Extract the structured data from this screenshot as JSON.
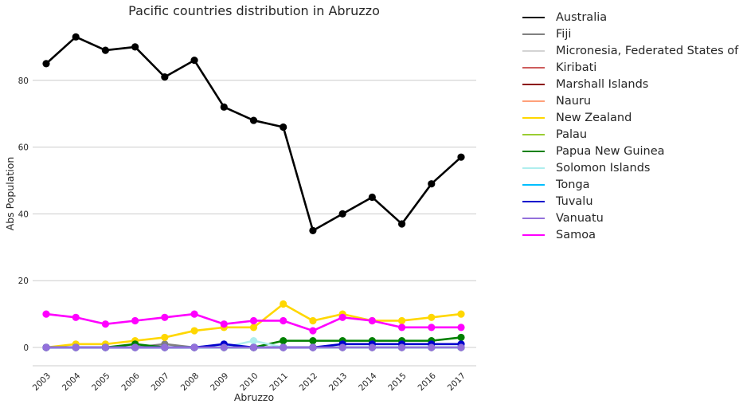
{
  "chart_data": {
    "type": "line",
    "title": "Pacific countries distribution in Abruzzo",
    "xlabel": "Abruzzo",
    "ylabel": "Abs Population",
    "x": [
      "2003",
      "2004",
      "2005",
      "2006",
      "2007",
      "2008",
      "2009",
      "2010",
      "2011",
      "2012",
      "2013",
      "2014",
      "2015",
      "2016",
      "2017"
    ],
    "ylim": [
      -5,
      100
    ],
    "yticks": [
      0,
      20,
      40,
      60,
      80
    ],
    "grid": "horizontal",
    "legend_position": "outside-right",
    "series": [
      {
        "name": "Australia",
        "color": "#000000",
        "values": [
          85,
          93,
          89,
          90,
          81,
          86,
          72,
          68,
          66,
          35,
          40,
          45,
          37,
          49,
          57
        ]
      },
      {
        "name": "Fiji",
        "color": "#808080",
        "values": [
          0,
          0,
          0,
          0,
          1,
          0,
          0,
          0,
          0,
          0,
          0,
          0,
          0,
          0,
          0
        ]
      },
      {
        "name": "Micronesia, Federated States of",
        "color": "#d3d3d3",
        "values": [
          0,
          0,
          0,
          0,
          0,
          0,
          0,
          0,
          0,
          0,
          0,
          0,
          0,
          0,
          0
        ]
      },
      {
        "name": "Kiribati",
        "color": "#cd5c5c",
        "values": [
          0,
          0,
          0,
          0,
          0,
          0,
          0,
          0,
          0,
          0,
          0,
          0,
          0,
          0,
          0
        ]
      },
      {
        "name": "Marshall Islands",
        "color": "#8b0000",
        "values": [
          0,
          0,
          0,
          0,
          0,
          0,
          0,
          0,
          0,
          0,
          0,
          0,
          0,
          0,
          0
        ]
      },
      {
        "name": "Nauru",
        "color": "#ffa07a",
        "values": [
          0,
          0,
          0,
          0,
          0,
          0,
          0,
          0,
          0,
          0,
          0,
          0,
          0,
          0,
          0
        ]
      },
      {
        "name": "New Zealand",
        "color": "#ffd700",
        "values": [
          0,
          1,
          1,
          2,
          3,
          5,
          6,
          6,
          13,
          8,
          10,
          8,
          8,
          9,
          10
        ]
      },
      {
        "name": "Palau",
        "color": "#9acd32",
        "values": [
          0,
          0,
          0,
          0,
          0,
          0,
          0,
          0,
          0,
          0,
          0,
          0,
          0,
          0,
          0
        ]
      },
      {
        "name": "Papua New Guinea",
        "color": "#008000",
        "values": [
          0,
          0,
          0,
          1,
          0,
          0,
          0,
          0,
          2,
          2,
          2,
          2,
          2,
          2,
          3
        ]
      },
      {
        "name": "Solomon Islands",
        "color": "#afeeee",
        "values": [
          0,
          0,
          0,
          0,
          0,
          0,
          0,
          2,
          0,
          0,
          0,
          0,
          0,
          0,
          0
        ]
      },
      {
        "name": "Tonga",
        "color": "#00bfff",
        "values": [
          0,
          0,
          0,
          0,
          0,
          0,
          0,
          0,
          0,
          0,
          0,
          0,
          0,
          0,
          0
        ]
      },
      {
        "name": "Tuvalu",
        "color": "#0000cd",
        "values": [
          0,
          0,
          0,
          0,
          0,
          0,
          1,
          0,
          0,
          0,
          1,
          1,
          1,
          1,
          1
        ]
      },
      {
        "name": "Vanuatu",
        "color": "#9370db",
        "values": [
          0,
          0,
          0,
          0,
          0,
          0,
          0,
          0,
          0,
          0,
          0,
          0,
          0,
          0,
          0
        ]
      },
      {
        "name": "Samoa",
        "color": "#ff00ff",
        "values": [
          10,
          9,
          7,
          8,
          9,
          10,
          7,
          8,
          8,
          5,
          9,
          8,
          6,
          6,
          6
        ]
      }
    ]
  }
}
